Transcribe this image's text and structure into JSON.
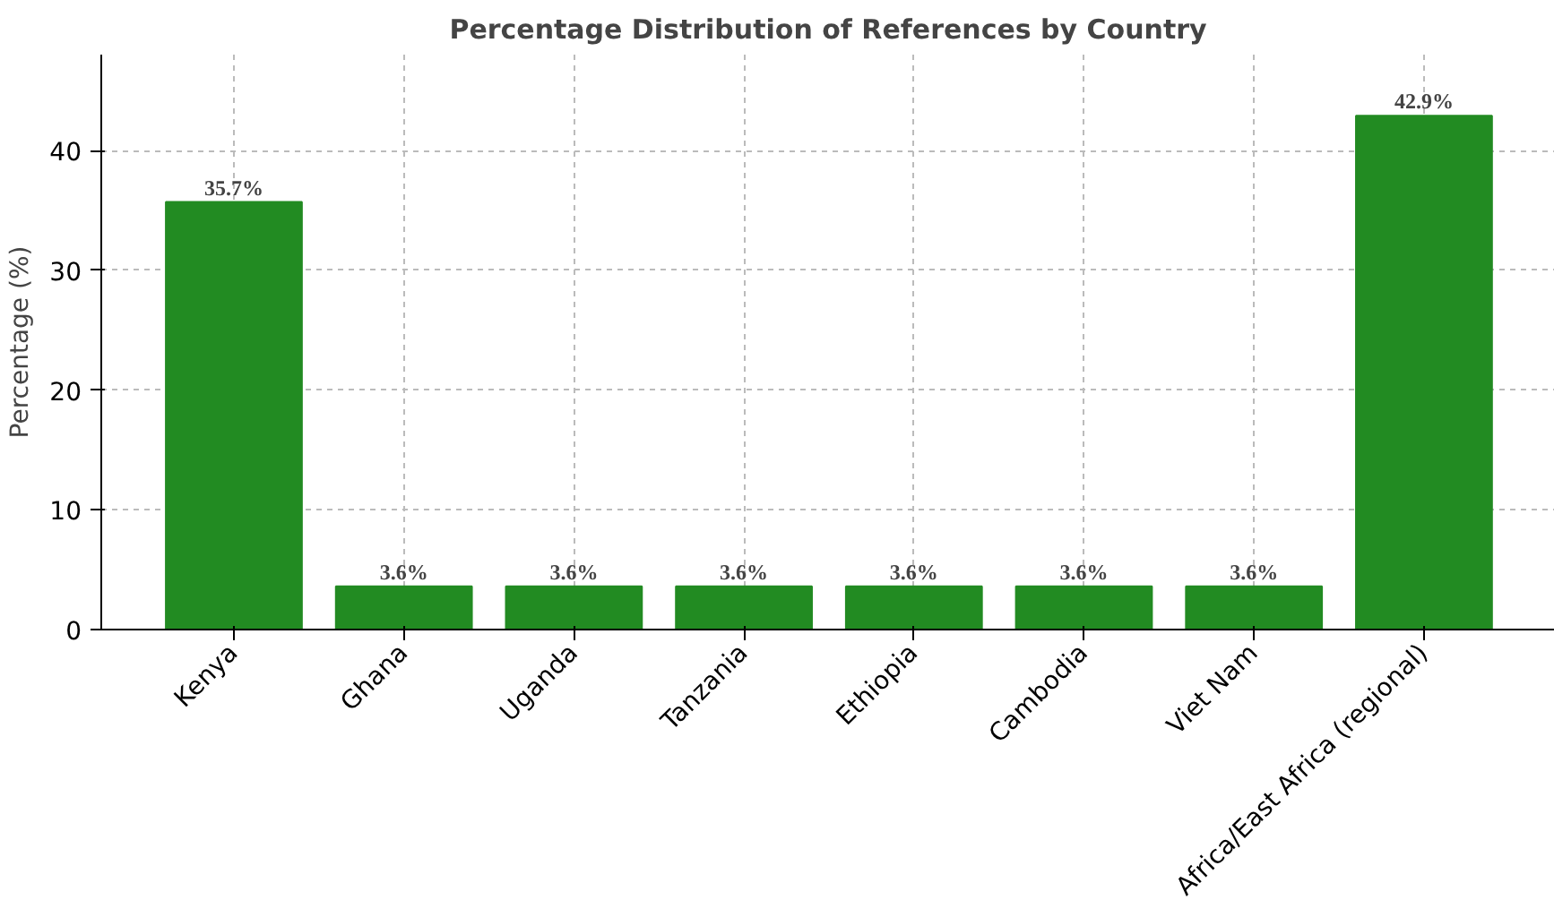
{
  "chart_data": {
    "type": "bar",
    "title": "Percentage Distribution of References by Country",
    "ylabel": "Percentage (%)",
    "categories": [
      "Kenya",
      "Ghana",
      "Uganda",
      "Tanzania",
      "Ethiopia",
      "Cambodia",
      "Viet Nam",
      "Africa/East Africa (regional)"
    ],
    "values": [
      35.7,
      3.6,
      3.6,
      3.6,
      3.6,
      3.6,
      3.6,
      42.9
    ],
    "value_labels": [
      "35.7%",
      "3.6%",
      "3.6%",
      "3.6%",
      "3.6%",
      "3.6%",
      "3.6%",
      "42.9%"
    ],
    "color": "#228b22",
    "ylim": [
      0,
      48
    ],
    "yticks": [
      0,
      10,
      20,
      30,
      40
    ],
    "grid": true
  }
}
